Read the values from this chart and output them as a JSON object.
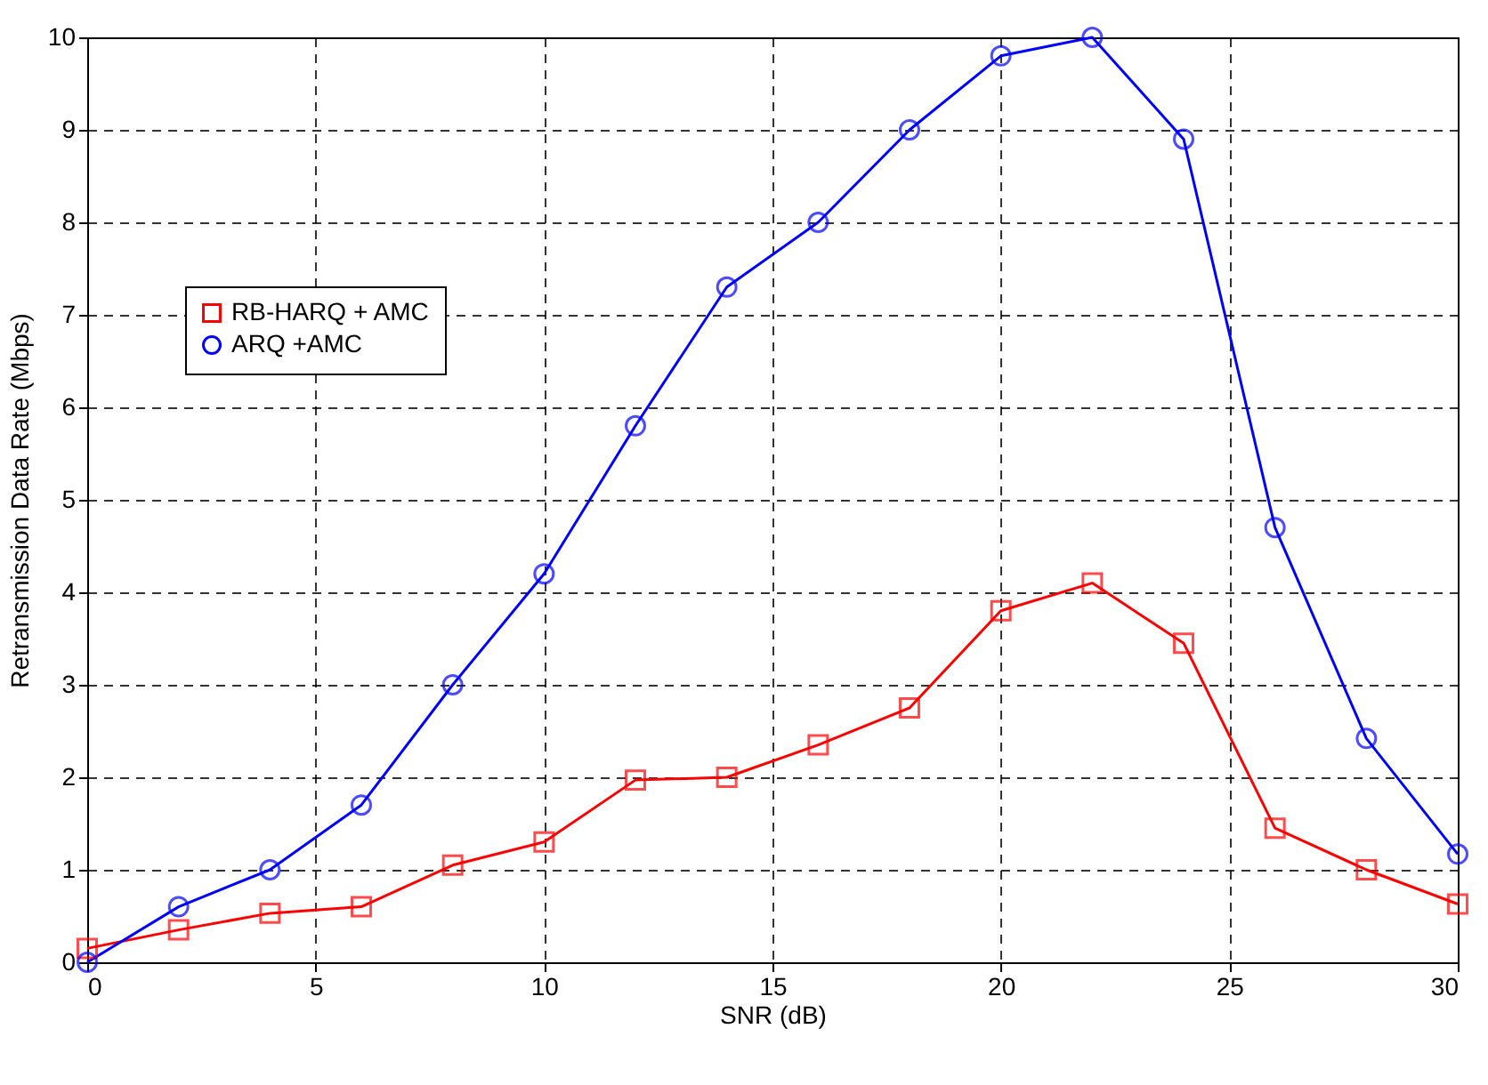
{
  "chart_data": {
    "type": "line",
    "xlabel": "SNR (dB)",
    "ylabel": "Retransmission Data Rate (Mbps)",
    "x": [
      0,
      2,
      4,
      6,
      8,
      10,
      12,
      14,
      16,
      18,
      20,
      22,
      24,
      26,
      28,
      30
    ],
    "series": [
      {
        "name": "RB-HARQ + AMC",
        "color": "#ff0000",
        "marker": "square",
        "values": [
          0.15,
          0.35,
          0.53,
          0.6,
          1.05,
          1.3,
          1.97,
          2.0,
          2.35,
          2.75,
          3.8,
          4.1,
          3.45,
          1.45,
          1.0,
          0.63
        ]
      },
      {
        "name": "ARQ +AMC",
        "color": "#0000ff",
        "marker": "circle",
        "values": [
          0,
          0.6,
          1.0,
          1.7,
          3.0,
          4.2,
          5.8,
          7.3,
          8.0,
          9.0,
          9.8,
          10.0,
          8.9,
          4.7,
          2.42,
          1.17
        ]
      }
    ],
    "xlim": [
      0,
      30
    ],
    "xticks": [
      0,
      5,
      10,
      15,
      20,
      25,
      30
    ],
    "ylim": [
      0,
      10
    ],
    "yticks": [
      0,
      1,
      2,
      3,
      4,
      5,
      6,
      7,
      8,
      9,
      10
    ],
    "grid": true,
    "line_style": "solid",
    "legend": "top left"
  }
}
